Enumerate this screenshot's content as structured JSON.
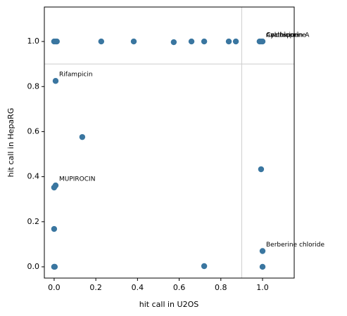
{
  "chart_data": {
    "type": "scatter",
    "xlabel": "hit call in U2OS",
    "ylabel": "hit call in HepaRG",
    "color": "#3a76a0",
    "series": [
      {
        "x": [
          0.0,
          0.007,
          0.013,
          0.226,
          0.382,
          0.574,
          0.659,
          0.72,
          0.838,
          0.872,
          0.986,
          0.993,
          1.0,
          0.007,
          0.135,
          0.0,
          0.007,
          0.993,
          0.0,
          0.0,
          0.003,
          0.72,
          1.0,
          1.0
        ],
        "values": [
          1.0,
          1.0,
          1.0,
          1.0,
          1.0,
          0.997,
          1.0,
          1.0,
          1.0,
          1.0,
          1.0,
          1.0,
          1.0,
          0.825,
          0.576,
          0.352,
          0.361,
          0.433,
          0.168,
          0.0,
          0.0,
          0.003,
          0.07,
          0.0
        ]
      }
    ],
    "threshold_lines": {
      "x": 0.9,
      "y": 0.9
    },
    "annotations": [
      {
        "text": "Rifampicin",
        "x": 0.007,
        "y": 0.825
      },
      {
        "text": "MUPIROCIN",
        "x": 0.007,
        "y": 0.361
      },
      {
        "text": "Berberine chloride",
        "x": 1.0,
        "y": 0.07
      },
      {
        "text": "Azathioprine",
        "x": 1.0,
        "y": 1.0
      },
      {
        "text": "Cyclosporin A",
        "x": 1.0,
        "y": 1.0
      },
      {
        "text": "Colchicine",
        "x": 1.0,
        "y": 1.0
      }
    ],
    "xlim": [
      -0.047,
      1.152
    ],
    "ylim": [
      -0.05,
      1.153
    ],
    "xticks": [
      {
        "value": 0,
        "label": "0.0"
      },
      {
        "value": 0.2,
        "label": "0.2"
      },
      {
        "value": 0.4,
        "label": "0.4"
      },
      {
        "value": 0.6,
        "label": "0.6"
      },
      {
        "value": 0.8,
        "label": "0.8"
      },
      {
        "value": 1,
        "label": "1.0"
      }
    ],
    "yticks": [
      {
        "value": 0,
        "label": "0.0"
      },
      {
        "value": 0.2,
        "label": "0.2"
      },
      {
        "value": 0.4,
        "label": "0.4"
      },
      {
        "value": 0.6,
        "label": "0.6"
      },
      {
        "value": 0.8,
        "label": "0.8"
      },
      {
        "value": 1,
        "label": "1.0"
      }
    ],
    "grid": false
  }
}
